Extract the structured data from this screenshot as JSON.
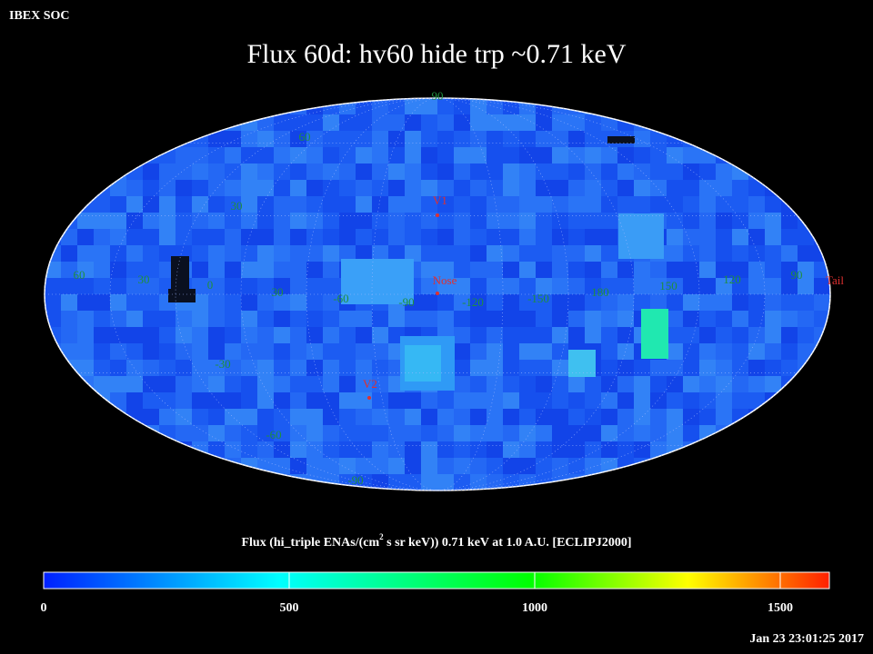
{
  "header": {
    "label": "IBEX SOC",
    "title": "Flux   60d: hv60 hide trp ~0.71 keV",
    "timestamp": "Jan 23 23:01:25 2017"
  },
  "map": {
    "latitude_labels": [
      "90",
      "60",
      "30",
      "-30",
      "-60",
      "-90"
    ],
    "longitude_labels": [
      "60",
      "30",
      "0",
      "30",
      "-60",
      "-90",
      "-120",
      "-150",
      "180",
      "150",
      "120",
      "90"
    ],
    "markers": [
      {
        "label": "V1"
      },
      {
        "label": "Nose"
      },
      {
        "label": "V2"
      },
      {
        "label": "Tail"
      }
    ]
  },
  "colorbar": {
    "title_parts": [
      "Flux (hi_triple ENAs/(cm",
      "2",
      " s sr keV))  0.71 keV at 1.0 A.U. [ECLIPJ2000]"
    ],
    "range": [
      0,
      1600
    ],
    "ticks": [
      0,
      500,
      1000,
      1500
    ]
  }
}
